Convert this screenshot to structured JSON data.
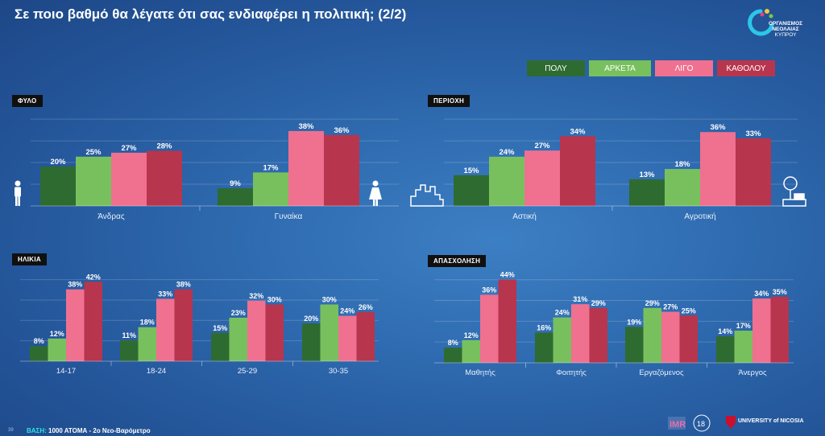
{
  "header": {
    "title": "Σε ποιο βαθμό θα λέγατε ότι σας ενδιαφέρει η πολιτική; (2/2)",
    "org_logo_text": [
      "ΟΡΓΑΝΙΣΜΟΣ",
      "ΝΕΟΛΑΙΑΣ",
      "ΚΥΠΡΟΥ"
    ]
  },
  "legend": [
    {
      "label": "ΠΟΛΥ",
      "color": "#2e6b31"
    },
    {
      "label": "ΑΡΚΕΤΑ",
      "color": "#78c05e"
    },
    {
      "label": "ΛΙΓΟ",
      "color": "#f07090"
    },
    {
      "label": "ΚΑΘΟΛΟΥ",
      "color": "#b8354e"
    }
  ],
  "chart_data": [
    {
      "type": "bar",
      "title": "ΦΥΛΟ",
      "categories": [
        "Άνδρας",
        "Γυναίκα"
      ],
      "series": [
        {
          "name": "ΠΟΛΥ",
          "values": [
            20,
            9
          ]
        },
        {
          "name": "ΑΡΚΕΤΑ",
          "values": [
            25,
            17
          ]
        },
        {
          "name": "ΛΙΓΟ",
          "values": [
            27,
            38
          ]
        },
        {
          "name": "ΚΑΘΟΛΟΥ",
          "values": [
            28,
            36
          ]
        }
      ],
      "unit": "%"
    },
    {
      "type": "bar",
      "title": "ΠΕΡΙΟΧΗ",
      "categories": [
        "Αστική",
        "Αγροτική"
      ],
      "series": [
        {
          "name": "ΠΟΛΥ",
          "values": [
            15,
            13
          ]
        },
        {
          "name": "ΑΡΚΕΤΑ",
          "values": [
            24,
            18
          ]
        },
        {
          "name": "ΛΙΓΟ",
          "values": [
            27,
            36
          ]
        },
        {
          "name": "ΚΑΘΟΛΟΥ",
          "values": [
            34,
            33
          ]
        }
      ],
      "unit": "%"
    },
    {
      "type": "bar",
      "title": "ΗΛΙΚΙΑ",
      "categories": [
        "14-17",
        "18-24",
        "25-29",
        "30-35"
      ],
      "series": [
        {
          "name": "ΠΟΛΥ",
          "values": [
            8,
            11,
            15,
            20
          ]
        },
        {
          "name": "ΑΡΚΕΤΑ",
          "values": [
            12,
            18,
            23,
            30
          ]
        },
        {
          "name": "ΛΙΓΟ",
          "values": [
            38,
            33,
            32,
            24
          ]
        },
        {
          "name": "ΚΑΘΟΛΟΥ",
          "values": [
            42,
            38,
            30,
            26
          ]
        }
      ],
      "unit": "%"
    },
    {
      "type": "bar",
      "title": "ΑΠΑΣΧΟΛΗΣΗ",
      "categories": [
        "Μαθητής",
        "Φοιτητής",
        "Εργαζόμενος",
        "Άνεργος"
      ],
      "series": [
        {
          "name": "ΠΟΛΥ",
          "values": [
            8,
            16,
            19,
            14
          ]
        },
        {
          "name": "ΑΡΚΕΤΑ",
          "values": [
            12,
            24,
            29,
            17
          ]
        },
        {
          "name": "ΛΙΓΟ",
          "values": [
            36,
            31,
            27,
            34
          ]
        },
        {
          "name": "ΚΑΘΟΛΟΥ",
          "values": [
            44,
            29,
            25,
            35
          ]
        }
      ],
      "unit": "%"
    }
  ],
  "footer": {
    "basis_label": "ΒΑΣΗ:",
    "basis_text": " 1000 ΑΤΟΜΑ - 2ο Νεο-Βαρόμετρο",
    "page": "39",
    "university": "UNIVERSITY of NICOSIA"
  }
}
